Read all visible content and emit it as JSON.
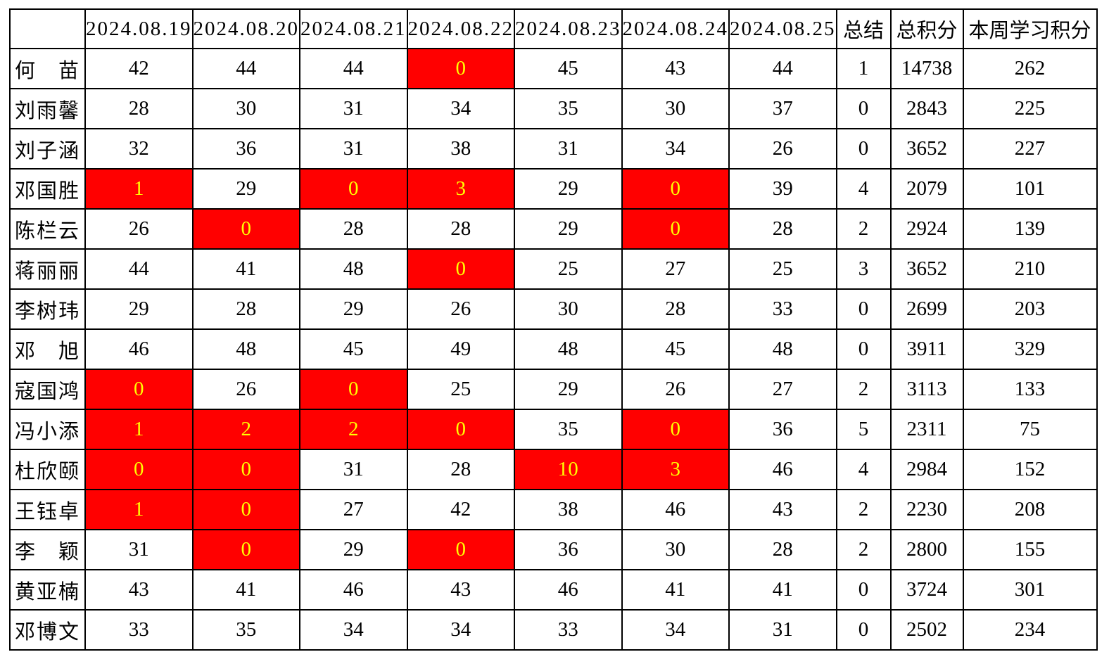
{
  "styles": {
    "background": "#FFFFFF",
    "grid_color": "#000000",
    "text_color": "#000000",
    "accent_red": "#FF0000",
    "highlight_bg": "#FF0000",
    "highlight_text": "#FFFF00"
  },
  "chart_data": {
    "type": "table",
    "columns": [
      "",
      "2024.08.19",
      "2024.08.20",
      "2024.08.21",
      "2024.08.22",
      "2024.08.23",
      "2024.08.24",
      "2024.08.25",
      "总结",
      "总积分",
      "本周学习积分"
    ],
    "date_columns": [
      "2024.08.19",
      "2024.08.20",
      "2024.08.21",
      "2024.08.22",
      "2024.08.23",
      "2024.08.24",
      "2024.08.25"
    ],
    "summary_header": "总结",
    "total_header": "总积分",
    "week_header": "本周学习积分",
    "legend_note_highlight": "red cell with yellow number = low/zero score day",
    "rows": [
      {
        "name": "何　苗",
        "daily": [
          42,
          44,
          44,
          0,
          45,
          43,
          44
        ],
        "highlighted": [
          3
        ],
        "summary": 1,
        "total": 14738,
        "week": 262
      },
      {
        "name": "刘雨馨",
        "daily": [
          28,
          30,
          31,
          34,
          35,
          30,
          37
        ],
        "highlighted": [],
        "summary": 0,
        "total": 2843,
        "week": 225
      },
      {
        "name": "刘子涵",
        "daily": [
          32,
          36,
          31,
          38,
          31,
          34,
          26
        ],
        "highlighted": [],
        "summary": 0,
        "total": 3652,
        "week": 227
      },
      {
        "name": "邓国胜",
        "daily": [
          1,
          29,
          0,
          3,
          29,
          0,
          39
        ],
        "highlighted": [
          0,
          2,
          3,
          5
        ],
        "summary": 4,
        "total": 2079,
        "week": 101
      },
      {
        "name": "陈栏云",
        "daily": [
          26,
          0,
          28,
          28,
          29,
          0,
          28
        ],
        "highlighted": [
          1,
          5
        ],
        "summary": 2,
        "total": 2924,
        "week": 139
      },
      {
        "name": "蒋丽丽",
        "daily": [
          44,
          41,
          48,
          0,
          25,
          27,
          25
        ],
        "highlighted": [
          3
        ],
        "summary": 3,
        "total": 3652,
        "week": 210
      },
      {
        "name": "李树玮",
        "daily": [
          29,
          28,
          29,
          26,
          30,
          28,
          33
        ],
        "highlighted": [],
        "summary": 0,
        "total": 2699,
        "week": 203
      },
      {
        "name": "邓　旭",
        "daily": [
          46,
          48,
          45,
          49,
          48,
          45,
          48
        ],
        "highlighted": [],
        "summary": 0,
        "total": 3911,
        "week": 329
      },
      {
        "name": "寇国鸿",
        "daily": [
          0,
          26,
          0,
          25,
          29,
          26,
          27
        ],
        "highlighted": [
          0,
          2
        ],
        "summary": 2,
        "total": 3113,
        "week": 133
      },
      {
        "name": "冯小添",
        "daily": [
          1,
          2,
          2,
          0,
          35,
          0,
          36
        ],
        "highlighted": [
          0,
          1,
          2,
          3,
          5
        ],
        "summary": 5,
        "total": 2311,
        "week": 75
      },
      {
        "name": "杜欣颐",
        "daily": [
          0,
          0,
          31,
          28,
          10,
          3,
          46
        ],
        "highlighted": [
          0,
          1,
          4,
          5
        ],
        "summary": 4,
        "total": 2984,
        "week": 152
      },
      {
        "name": "王钰卓",
        "daily": [
          1,
          0,
          27,
          42,
          38,
          46,
          43
        ],
        "highlighted": [
          0,
          1
        ],
        "summary": 2,
        "total": 2230,
        "week": 208
      },
      {
        "name": "李　颖",
        "daily": [
          31,
          0,
          29,
          0,
          36,
          30,
          28
        ],
        "highlighted": [
          1,
          3
        ],
        "summary": 2,
        "total": 2800,
        "week": 155
      },
      {
        "name": "黄亚楠",
        "daily": [
          43,
          41,
          46,
          43,
          46,
          41,
          41
        ],
        "highlighted": [],
        "summary": 0,
        "total": 3724,
        "week": 301
      },
      {
        "name": "邓博文",
        "daily": [
          33,
          35,
          34,
          34,
          33,
          34,
          31
        ],
        "highlighted": [],
        "summary": 0,
        "total": 2502,
        "week": 234
      }
    ]
  }
}
